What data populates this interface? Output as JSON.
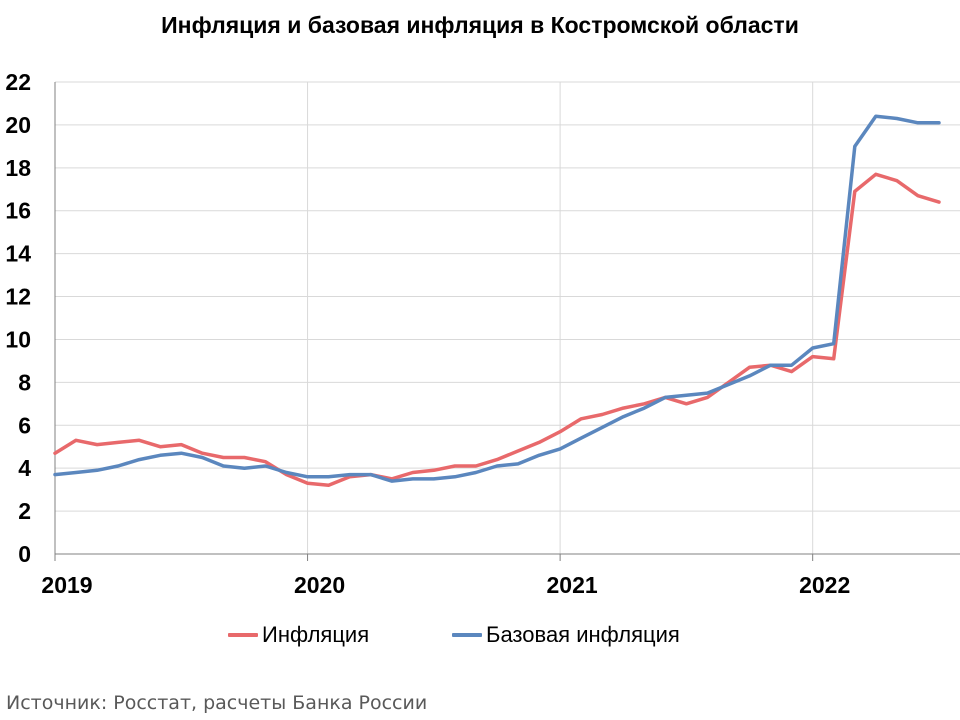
{
  "chart_data": {
    "type": "line",
    "title": "Инфляция и базовая инфляция в Костромской области",
    "xlabel": "",
    "ylabel": "",
    "x_tick_labels": [
      "2019",
      "2020",
      "2021",
      "2022"
    ],
    "y_ticks": [
      0,
      2,
      4,
      6,
      8,
      10,
      12,
      14,
      16,
      18,
      20,
      22
    ],
    "ylim": [
      0,
      22
    ],
    "grid": true,
    "legend_position": "bottom",
    "x": [
      "2019-01",
      "2019-02",
      "2019-03",
      "2019-04",
      "2019-05",
      "2019-06",
      "2019-07",
      "2019-08",
      "2019-09",
      "2019-10",
      "2019-11",
      "2019-12",
      "2020-01",
      "2020-02",
      "2020-03",
      "2020-04",
      "2020-05",
      "2020-06",
      "2020-07",
      "2020-08",
      "2020-09",
      "2020-10",
      "2020-11",
      "2020-12",
      "2021-01",
      "2021-02",
      "2021-03",
      "2021-04",
      "2021-05",
      "2021-06",
      "2021-07",
      "2021-08",
      "2021-09",
      "2021-10",
      "2021-11",
      "2021-12",
      "2022-01",
      "2022-02",
      "2022-03",
      "2022-04",
      "2022-05",
      "2022-06",
      "2022-07"
    ],
    "series": [
      {
        "name": "Инфляция",
        "color": "#E8696B",
        "values": [
          4.7,
          5.3,
          5.1,
          5.2,
          5.3,
          5.0,
          5.1,
          4.7,
          4.5,
          4.5,
          4.3,
          3.7,
          3.3,
          3.2,
          3.6,
          3.7,
          3.5,
          3.8,
          3.9,
          4.1,
          4.1,
          4.4,
          4.8,
          5.2,
          5.7,
          6.3,
          6.5,
          6.8,
          7.0,
          7.3,
          7.0,
          7.3,
          8.0,
          8.7,
          8.8,
          8.5,
          9.2,
          9.1,
          16.9,
          17.7,
          17.4,
          16.7,
          16.4
        ]
      },
      {
        "name": "Базовая инфляция",
        "color": "#5B87BE",
        "values": [
          3.7,
          3.8,
          3.9,
          4.1,
          4.4,
          4.6,
          4.7,
          4.5,
          4.1,
          4.0,
          4.1,
          3.8,
          3.6,
          3.6,
          3.7,
          3.7,
          3.4,
          3.5,
          3.5,
          3.6,
          3.8,
          4.1,
          4.2,
          4.6,
          4.9,
          5.4,
          5.9,
          6.4,
          6.8,
          7.3,
          7.4,
          7.5,
          7.9,
          8.3,
          8.8,
          8.8,
          9.6,
          9.8,
          19.0,
          20.4,
          20.3,
          20.1,
          20.1
        ]
      }
    ]
  },
  "source_text": "Источник: Росстат, расчеты Банка России"
}
